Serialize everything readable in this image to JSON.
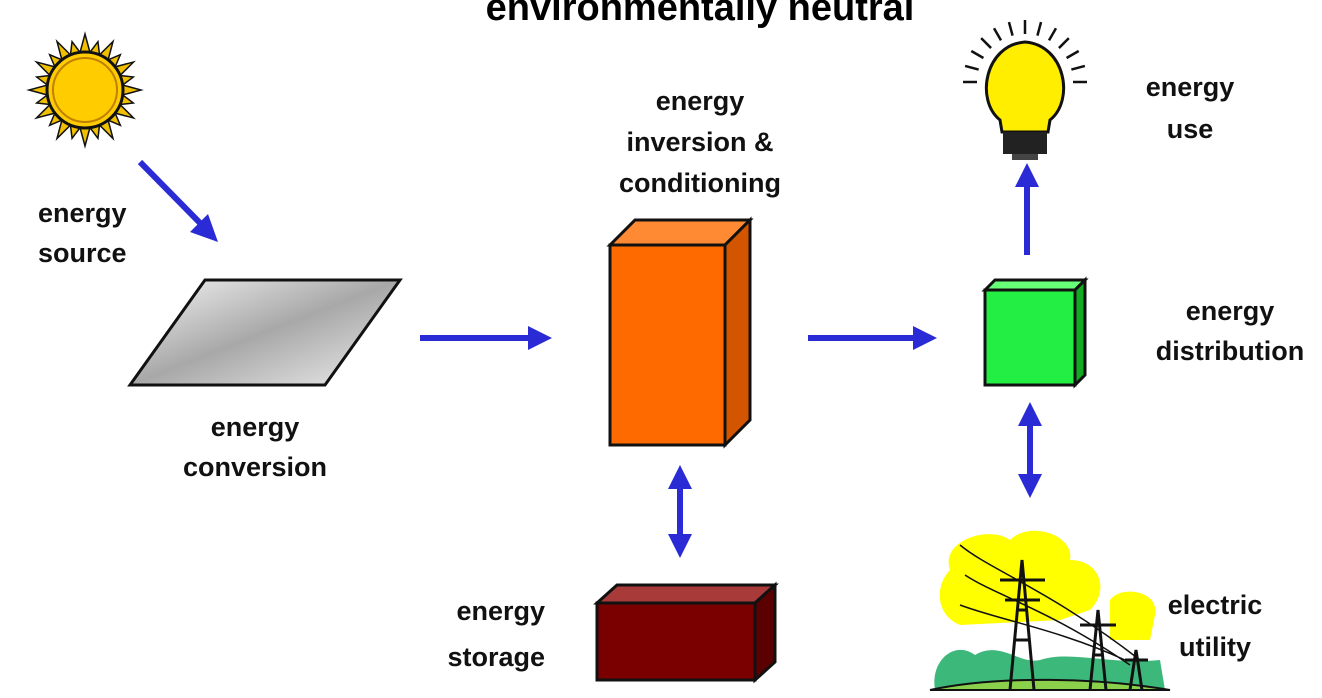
{
  "header": {
    "title": "environmentally neutral"
  },
  "nodes": [
    {
      "label": [
        "energy",
        "source"
      ]
    },
    {
      "label": [
        "energy",
        "conversion"
      ]
    },
    {
      "label": [
        "energy",
        "inversion &",
        "conditioning"
      ]
    },
    {
      "label": [
        "energy",
        "storage"
      ]
    },
    {
      "label": [
        "energy",
        "distribution"
      ]
    },
    {
      "label": [
        "energy",
        "use"
      ]
    },
    {
      "label": [
        "electric",
        "utility"
      ]
    }
  ]
}
